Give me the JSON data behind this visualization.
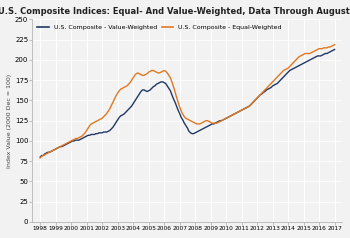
{
  "title": "U.S. Composite Indices: Equal- And Value-Weighted, Data Through August 2017",
  "ylabel": "Index Value (2000 Dec = 100)",
  "ylim": [
    0,
    250
  ],
  "yticks": [
    0,
    25,
    50,
    75,
    100,
    125,
    150,
    175,
    200,
    225,
    250
  ],
  "xtick_labels": [
    "1998",
    "1999",
    "2000",
    "2001",
    "2002",
    "2003",
    "2004",
    "2005",
    "2006",
    "2007",
    "2008",
    "2009",
    "2010",
    "2011",
    "2012",
    "2013",
    "2014",
    "2015",
    "2016",
    "2017"
  ],
  "value_weighted_color": "#1f3864",
  "equal_weighted_color": "#e07820",
  "background_color": "#f2f2f2",
  "plot_bg_color": "#f2f2f2",
  "grid_color": "#ffffff",
  "legend_label_vw": "U.S. Composite - Value-Weighted",
  "legend_label_ew": "U.S. Composite - Equal-Weighted",
  "value_weighted": [
    80,
    82,
    82,
    84,
    85,
    86,
    86,
    87,
    88,
    89,
    90,
    91,
    92,
    93,
    93,
    94,
    95,
    96,
    97,
    98,
    99,
    100,
    100,
    101,
    101,
    101,
    102,
    103,
    104,
    105,
    106,
    107,
    107,
    108,
    108,
    108,
    109,
    109,
    110,
    110,
    110,
    111,
    111,
    111,
    112,
    113,
    115,
    117,
    120,
    123,
    126,
    129,
    131,
    132,
    133,
    135,
    137,
    139,
    141,
    143,
    146,
    149,
    152,
    155,
    158,
    161,
    163,
    163,
    162,
    161,
    162,
    163,
    165,
    167,
    168,
    170,
    171,
    172,
    173,
    173,
    172,
    171,
    168,
    165,
    162,
    157,
    152,
    148,
    143,
    138,
    134,
    129,
    126,
    122,
    119,
    116,
    112,
    110,
    109,
    109,
    110,
    111,
    112,
    113,
    114,
    115,
    116,
    117,
    118,
    119,
    120,
    121,
    121,
    122,
    123,
    124,
    125,
    125,
    126,
    127,
    128,
    129,
    130,
    131,
    132,
    133,
    134,
    135,
    136,
    137,
    138,
    139,
    140,
    141,
    142,
    143,
    145,
    147,
    149,
    151,
    153,
    155,
    157,
    158,
    160,
    161,
    163,
    164,
    165,
    166,
    168,
    169,
    170,
    171,
    173,
    175,
    177,
    179,
    181,
    183,
    185,
    187,
    188,
    189,
    190,
    191,
    192,
    193,
    194,
    195,
    196,
    197,
    198,
    199,
    200,
    201,
    202,
    203,
    204,
    205,
    205,
    205,
    206,
    207,
    208,
    208,
    209,
    210,
    211,
    212,
    213
  ],
  "equal_weighted": [
    79,
    81,
    82,
    83,
    84,
    85,
    86,
    87,
    88,
    89,
    90,
    91,
    92,
    93,
    94,
    95,
    96,
    97,
    98,
    99,
    100,
    101,
    102,
    103,
    103,
    104,
    105,
    106,
    108,
    110,
    113,
    116,
    119,
    121,
    122,
    123,
    124,
    125,
    126,
    127,
    128,
    130,
    132,
    134,
    137,
    140,
    144,
    148,
    152,
    156,
    159,
    162,
    164,
    165,
    166,
    167,
    168,
    170,
    172,
    175,
    178,
    181,
    183,
    184,
    183,
    182,
    181,
    181,
    182,
    183,
    185,
    186,
    187,
    187,
    186,
    185,
    184,
    184,
    185,
    186,
    187,
    186,
    184,
    181,
    178,
    173,
    167,
    161,
    154,
    148,
    142,
    137,
    133,
    130,
    128,
    127,
    126,
    125,
    124,
    123,
    122,
    121,
    121,
    121,
    122,
    123,
    124,
    125,
    125,
    124,
    123,
    122,
    122,
    122,
    122,
    123,
    124,
    125,
    126,
    127,
    128,
    129,
    130,
    131,
    132,
    133,
    134,
    135,
    136,
    137,
    138,
    139,
    140,
    141,
    142,
    143,
    145,
    147,
    149,
    151,
    153,
    155,
    157,
    159,
    161,
    163,
    165,
    167,
    169,
    171,
    173,
    175,
    177,
    179,
    181,
    183,
    185,
    187,
    188,
    189,
    190,
    192,
    194,
    196,
    198,
    200,
    202,
    204,
    205,
    206,
    207,
    208,
    208,
    208,
    208,
    209,
    210,
    211,
    212,
    213,
    214,
    214,
    214,
    215,
    215,
    215,
    216,
    216,
    217,
    218,
    219
  ]
}
